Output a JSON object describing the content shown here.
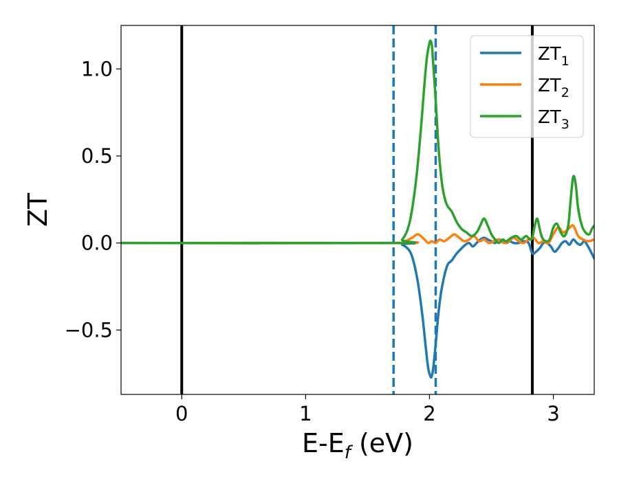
{
  "chart_data": {
    "type": "line",
    "xlabel": "E-E",
    "xlabel_sub": "f",
    "xlabel_unit": " (eV)",
    "ylabel": "ZT",
    "xlim": [
      -0.49,
      3.33
    ],
    "ylim": [
      -0.87,
      1.25
    ],
    "xticks": [
      0,
      1,
      2,
      3
    ],
    "xtick_labels": [
      "0",
      "1",
      "2",
      "3"
    ],
    "yticks": [
      -0.5,
      0.0,
      0.5,
      1.0
    ],
    "ytick_labels": [
      "−0.5",
      "0.0",
      "0.5",
      "1.0"
    ],
    "grid": false,
    "legend_position": "top-right",
    "vlines": [
      {
        "x": 0.0,
        "style": "solid",
        "color": "#000000"
      },
      {
        "x": 1.71,
        "style": "dashed",
        "color": "#1f77b4"
      },
      {
        "x": 2.05,
        "style": "dashed",
        "color": "#1f77b4"
      },
      {
        "x": 2.83,
        "style": "solid",
        "color": "#000000"
      }
    ],
    "series": [
      {
        "name": "ZT",
        "sub": "1",
        "color": "#1f77b4",
        "x": [
          -0.49,
          1.7,
          1.78,
          1.85,
          1.9,
          1.94,
          1.97,
          1.99,
          2.01,
          2.02,
          2.03,
          2.05,
          2.07,
          2.09,
          2.11,
          2.13,
          2.15,
          2.18,
          2.22,
          2.26,
          2.29,
          2.32,
          2.35,
          2.38,
          2.41,
          2.44,
          2.47,
          2.5,
          2.53,
          2.56,
          2.59,
          2.62,
          2.65,
          2.68,
          2.72,
          2.76,
          2.8,
          2.83,
          2.86,
          2.89,
          2.92,
          2.95,
          2.98,
          3.01,
          3.04,
          3.07,
          3.1,
          3.13,
          3.16,
          3.19,
          3.22,
          3.25,
          3.28,
          3.31,
          3.33
        ],
        "values": [
          0.0,
          0.0,
          -0.01,
          -0.06,
          -0.2,
          -0.4,
          -0.6,
          -0.72,
          -0.77,
          -0.76,
          -0.72,
          -0.58,
          -0.42,
          -0.3,
          -0.22,
          -0.16,
          -0.12,
          -0.1,
          -0.06,
          -0.03,
          -0.01,
          0.0,
          -0.02,
          0.0,
          0.02,
          0.03,
          0.02,
          0.01,
          0.0,
          0.02,
          0.01,
          0.0,
          0.01,
          0.0,
          0.0,
          0.01,
          0.0,
          -0.06,
          -0.05,
          -0.03,
          0.0,
          0.0,
          -0.02,
          -0.05,
          -0.03,
          0.0,
          0.01,
          -0.01,
          0.02,
          0.0,
          -0.01,
          0.01,
          -0.02,
          -0.06,
          -0.09
        ]
      },
      {
        "name": "ZT",
        "sub": "2",
        "color": "#ff7f0e",
        "x": [
          -0.49,
          1.72,
          1.8,
          1.86,
          1.9,
          1.93,
          1.96,
          1.99,
          2.02,
          2.05,
          2.08,
          2.12,
          2.16,
          2.2,
          2.24,
          2.28,
          2.32,
          2.36,
          2.4,
          2.44,
          2.48,
          2.52,
          2.56,
          2.6,
          2.64,
          2.68,
          2.72,
          2.76,
          2.8,
          2.84,
          2.88,
          2.92,
          2.96,
          3.0,
          3.04,
          3.08,
          3.12,
          3.16,
          3.2,
          3.24,
          3.28,
          3.33
        ],
        "values": [
          0.0,
          0.0,
          0.01,
          0.03,
          0.05,
          0.04,
          0.02,
          0.0,
          0.01,
          0.0,
          0.02,
          0.01,
          0.03,
          0.05,
          0.03,
          0.01,
          0.02,
          0.04,
          0.01,
          0.02,
          0.0,
          0.01,
          0.02,
          0.0,
          0.01,
          0.03,
          0.01,
          0.0,
          0.02,
          0.03,
          0.0,
          0.01,
          0.0,
          0.05,
          0.09,
          0.06,
          0.08,
          0.1,
          0.04,
          0.02,
          0.01,
          0.02
        ]
      },
      {
        "name": "ZT",
        "sub": "3",
        "color": "#2ca02c",
        "x": [
          -0.49,
          1.7,
          1.78,
          1.84,
          1.89,
          1.93,
          1.96,
          1.98,
          2.0,
          2.01,
          2.02,
          2.03,
          2.05,
          2.07,
          2.09,
          2.11,
          2.14,
          2.18,
          2.22,
          2.26,
          2.3,
          2.34,
          2.38,
          2.41,
          2.44,
          2.47,
          2.5,
          2.53,
          2.56,
          2.59,
          2.62,
          2.66,
          2.7,
          2.74,
          2.78,
          2.81,
          2.83,
          2.85,
          2.87,
          2.89,
          2.91,
          2.94,
          2.97,
          3.0,
          3.03,
          3.06,
          3.09,
          3.12,
          3.14,
          3.16,
          3.18,
          3.2,
          3.23,
          3.26,
          3.29,
          3.31,
          3.33
        ],
        "values": [
          0.0,
          0.0,
          0.02,
          0.12,
          0.35,
          0.65,
          0.92,
          1.07,
          1.15,
          1.16,
          1.13,
          1.03,
          0.82,
          0.58,
          0.41,
          0.3,
          0.22,
          0.18,
          0.12,
          0.08,
          0.06,
          0.04,
          0.06,
          0.1,
          0.14,
          0.1,
          0.05,
          0.02,
          0.0,
          0.02,
          0.01,
          0.03,
          0.04,
          0.02,
          0.04,
          0.02,
          0.03,
          0.1,
          0.14,
          0.08,
          0.03,
          0.01,
          0.02,
          0.09,
          0.11,
          0.06,
          0.04,
          0.1,
          0.25,
          0.38,
          0.34,
          0.2,
          0.1,
          0.06,
          0.05,
          0.08,
          0.1
        ]
      }
    ]
  }
}
